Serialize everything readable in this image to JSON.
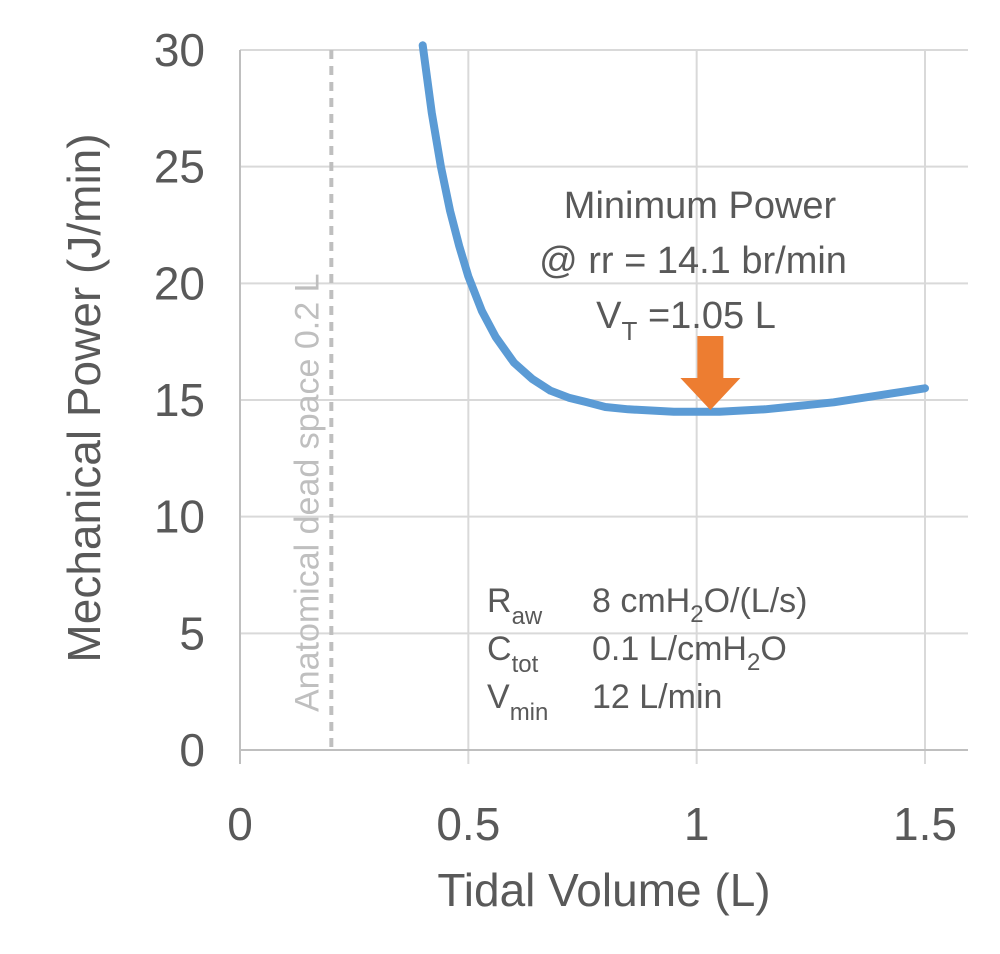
{
  "chart_data": {
    "type": "line",
    "xlabel": "Tidal Volume (L)",
    "ylabel": "Mechanical Power (J/min)",
    "xlim": [
      0,
      1.5
    ],
    "ylim": [
      0,
      30
    ],
    "x_ticks": [
      "0",
      "0.5",
      "1",
      "1.5"
    ],
    "y_ticks": [
      "0",
      "5",
      "10",
      "15",
      "20",
      "25",
      "30"
    ],
    "grid": true,
    "series": [
      {
        "color": "#5b9bd5",
        "x": [
          0.4,
          0.42,
          0.44,
          0.46,
          0.48,
          0.5,
          0.53,
          0.56,
          0.6,
          0.64,
          0.68,
          0.72,
          0.76,
          0.8,
          0.85,
          0.9,
          0.95,
          1.0,
          1.05,
          1.1,
          1.15,
          1.2,
          1.25,
          1.3,
          1.35,
          1.4,
          1.45,
          1.5
        ],
        "y": [
          30.2,
          27.3,
          25.0,
          23.1,
          21.6,
          20.3,
          18.8,
          17.7,
          16.6,
          15.9,
          15.4,
          15.1,
          14.9,
          14.7,
          14.6,
          14.55,
          14.5,
          14.5,
          14.5,
          14.55,
          14.6,
          14.7,
          14.8,
          14.9,
          15.05,
          15.2,
          15.35,
          15.5
        ]
      }
    ],
    "reference_line": {
      "x": 0.2,
      "style": "dashed",
      "color": "#bfbfbf",
      "label": "Anatomical dead space 0.2 L"
    },
    "annotation": {
      "line1": "Minimum Power",
      "line2": "@ rr = 14.1 br/min",
      "line3_main": "V",
      "line3_sub": "T",
      "line3_rest": " =1.05 L",
      "arrow_x": 1.03,
      "arrow_color": "#ed7d31"
    },
    "parameters": [
      {
        "symbol": "R",
        "sub": "aw",
        "value_pre": "8 cmH",
        "value_sub": "2",
        "value_post": "O/(L/s)"
      },
      {
        "symbol": "C",
        "sub": "tot",
        "value_pre": "0.1 L/cmH",
        "value_sub": "2",
        "value_post": "O"
      },
      {
        "symbol": "V",
        "sub": "min",
        "value_pre": "12 L/min",
        "value_sub": "",
        "value_post": ""
      }
    ]
  }
}
